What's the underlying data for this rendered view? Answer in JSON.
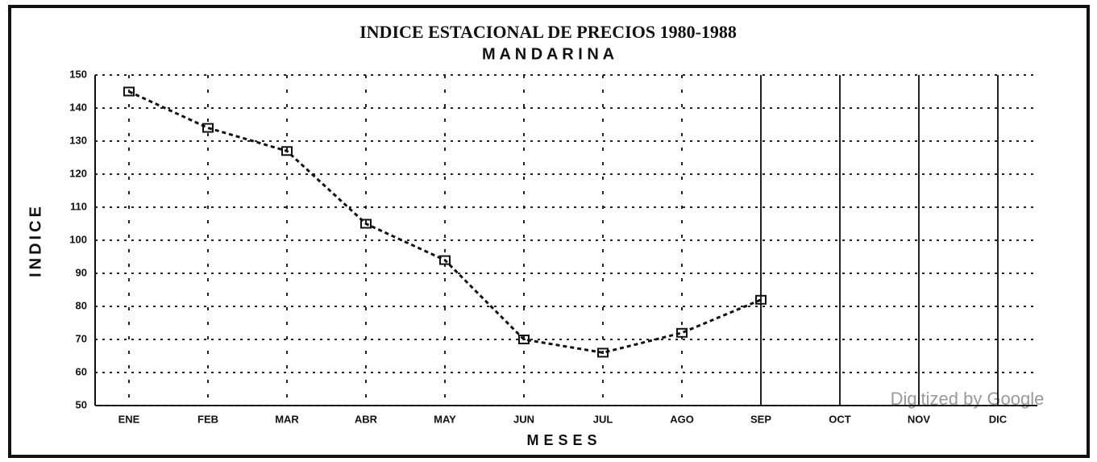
{
  "chart_data": {
    "type": "line",
    "title": "INDICE ESTACIONAL DE PRECIOS 1980-1988",
    "subtitle": "M A N D A R I N A",
    "x_label": "MESES",
    "y_label": "INDICE",
    "watermark": "Digitized by Google",
    "categories": [
      "ENE",
      "FEB",
      "MAR",
      "ABR",
      "MAY",
      "JUN",
      "JUL",
      "AGO",
      "SEP",
      "OCT",
      "NOV",
      "DIC"
    ],
    "series": [
      {
        "name": "MANDARINA",
        "color": "#111111",
        "values": [
          145,
          134,
          127,
          105,
          94,
          70,
          66,
          72,
          82,
          null,
          null,
          null
        ]
      }
    ],
    "ylim": [
      50,
      150
    ],
    "yticks": [
      50,
      60,
      70,
      80,
      90,
      100,
      110,
      120,
      130,
      140,
      150
    ],
    "grid": true
  }
}
